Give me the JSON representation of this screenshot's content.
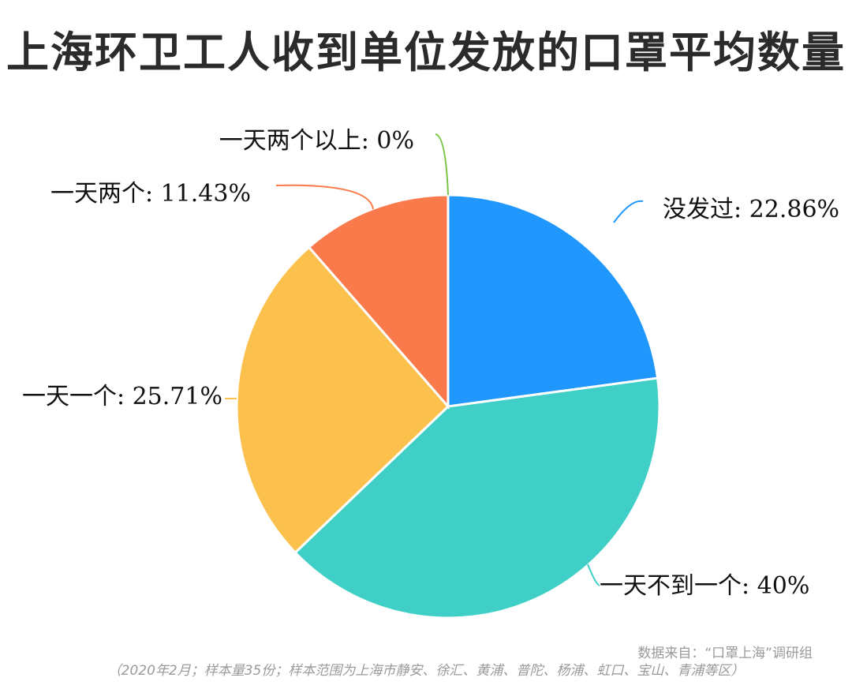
{
  "title": "上海环卫工人收到单位发放的口罩平均数量",
  "source": "数据来自：“口罩上海”调研组",
  "note": "（2020年2月；样本量35份；样本范围为上海市静安、徐汇、黄浦、普陀、杨浦、虹口、宝山、青浦等区）",
  "chart_data": {
    "type": "pie",
    "slices": [
      {
        "label": "没发过: 22.86%",
        "category": "没发过",
        "value": 22.86,
        "color": "#1f97fc"
      },
      {
        "label": "一天不到一个: 40%",
        "category": "一天不到一个",
        "value": 40,
        "color": "#3fcfc7"
      },
      {
        "label": "一天一个: 25.71%",
        "category": "一天一个",
        "value": 25.71,
        "color": "#fcc14d"
      },
      {
        "label": "一天两个: 11.43%",
        "category": "一天两个",
        "value": 11.43,
        "color": "#fb7a4c"
      },
      {
        "label": "一天两个以上: 0%",
        "category": "一天两个以上",
        "value": 0,
        "color": "#78c443"
      }
    ]
  }
}
